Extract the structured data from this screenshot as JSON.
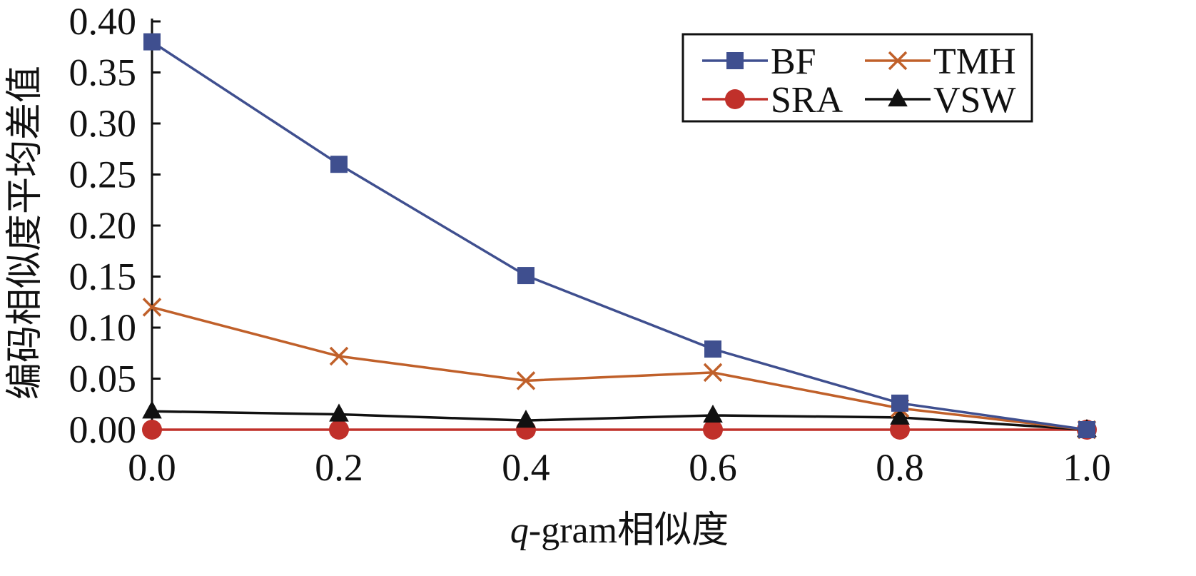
{
  "chart_data": {
    "type": "line",
    "xlabel_italic": "q",
    "xlabel_rest": "-gram相似度",
    "ylabel": "编码相似度平均差值",
    "x": [
      0.0,
      0.2,
      0.4,
      0.6,
      0.8,
      1.0
    ],
    "x_tick_labels": [
      "0.0",
      "0.2",
      "0.4",
      "0.6",
      "0.8",
      "1.0"
    ],
    "y_tick_labels": [
      "0.00",
      "0.05",
      "0.10",
      "0.15",
      "0.20",
      "0.25",
      "0.30",
      "0.35",
      "0.40"
    ],
    "xlim": [
      0.0,
      1.0
    ],
    "ylim": [
      0.0,
      0.4
    ],
    "grid": false,
    "legend_position": "top-right",
    "series": [
      {
        "name": "BF",
        "color": "#3f4f8f",
        "marker": "square",
        "values": [
          0.38,
          0.26,
          0.151,
          0.079,
          0.026,
          0.0
        ]
      },
      {
        "name": "TMH",
        "color": "#c0602a",
        "marker": "x",
        "values": [
          0.12,
          0.072,
          0.048,
          0.056,
          0.021,
          0.0
        ]
      },
      {
        "name": "SRA",
        "color": "#c0302a",
        "marker": "circle",
        "values": [
          0.0,
          0.0,
          0.0,
          0.0,
          0.0,
          0.0
        ]
      },
      {
        "name": "VSW",
        "color": "#111111",
        "marker": "triangle",
        "values": [
          0.018,
          0.015,
          0.009,
          0.014,
          0.012,
          0.0
        ]
      }
    ]
  }
}
